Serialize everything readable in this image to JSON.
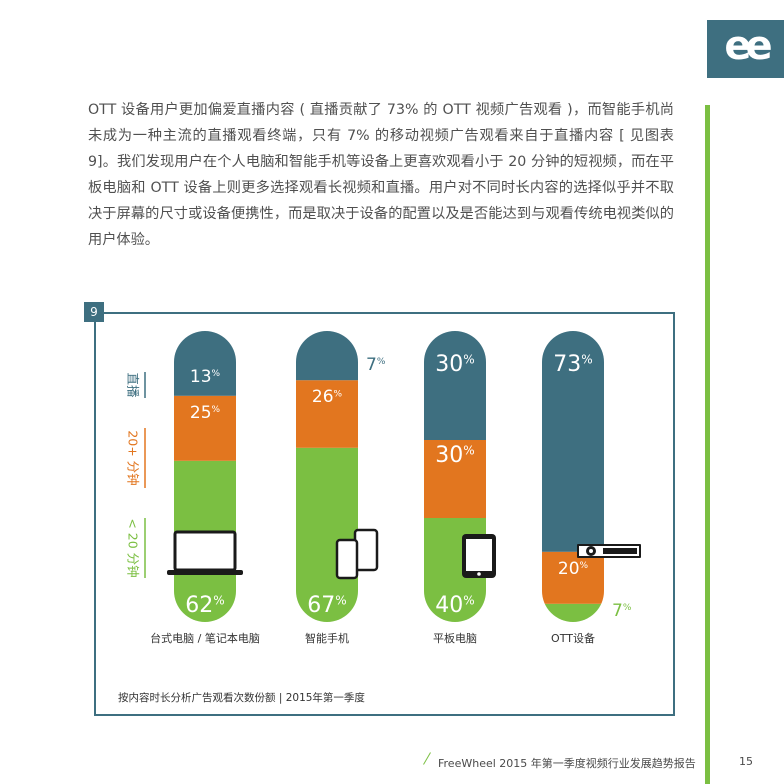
{
  "logo": {
    "glyph": "ee"
  },
  "intro_text": "OTT 设备用户更加偏爱直播内容 ( 直播贡献了 73% 的 OTT 视频广告观看 )，而智能手机尚未成为一种主流的直播观看终端，只有 7% 的移动视频广告观看来自于直播内容 [ 见图表 9]。我们发现用户在个人电脑和智能手机等设备上更喜欢观看小于 20 分钟的短视频，而在平板电脑和 OTT 设备上则更多选择观看长视频和直播。用户对不同时长内容的选择似乎并不取决于屏幕的尺寸或设备便携性，而是取决于设备的配置以及是否能达到与观看传统电视类似的用户体验。",
  "figure_number": "9",
  "chart_data": {
    "type": "bar",
    "stacked": true,
    "categories": [
      "台式电脑 / 笔记本电脑",
      "智能手机",
      "平板电脑",
      "OTT设备"
    ],
    "series": [
      {
        "name": "< 20 分钟",
        "color": "#7bbf42",
        "values": [
          62,
          67,
          40,
          7
        ]
      },
      {
        "name": "20+ 分钟",
        "color": "#e2761f",
        "values": [
          25,
          26,
          30,
          20
        ]
      },
      {
        "name": "直播",
        "color": "#3e6f80",
        "values": [
          13,
          7,
          30,
          73
        ]
      }
    ],
    "value_suffix": "%",
    "device_icons": [
      "laptop-icon",
      "smartphone-icon",
      "tablet-icon",
      "set-top-box-icon"
    ],
    "ylim": [
      0,
      100
    ],
    "grid": false
  },
  "source_note": "按内容时长分析广告观看次数份额 | 2015年第一季度",
  "footer": {
    "report_title": "FreeWheel 2015 年第一季度视频行业发展趋势报告",
    "page_number": "15"
  }
}
